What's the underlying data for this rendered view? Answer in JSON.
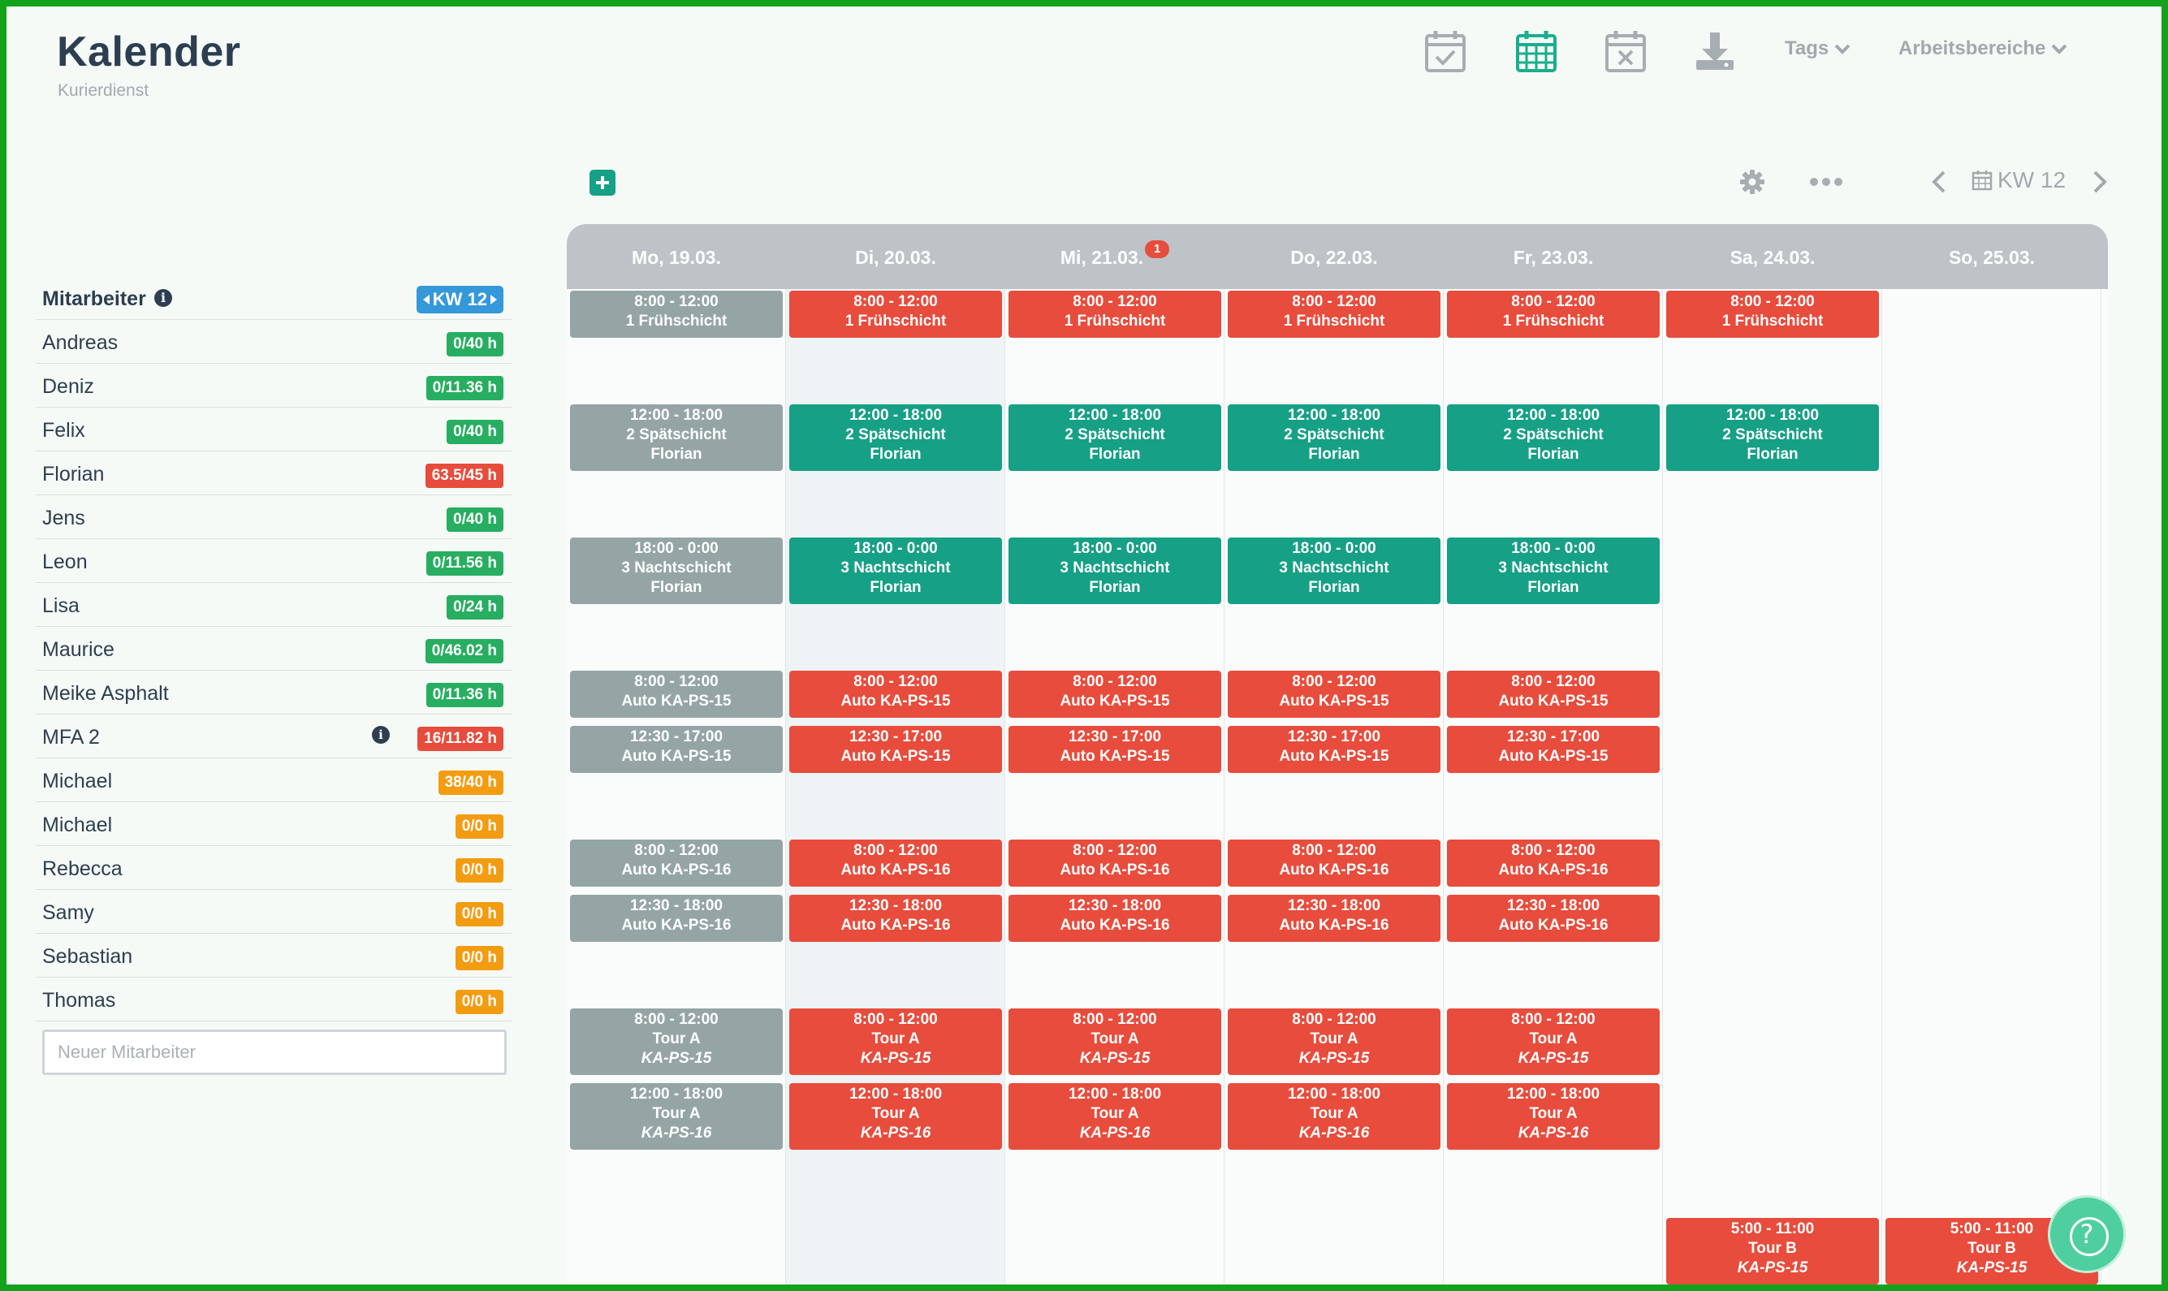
{
  "header": {
    "title": "Kalender",
    "subtitle": "Kurierdienst",
    "icons": [
      "calendar-check-icon",
      "calendar-grid-icon",
      "calendar-x-icon",
      "download-icon"
    ],
    "tags_label": "Tags",
    "areas_label": "Arbeitsbereiche"
  },
  "toolbar": {
    "week_label": "KW 12",
    "icons": [
      "plus-icon",
      "gear-icon",
      "more-icon",
      "chevron-left-icon",
      "calendar-icon",
      "chevron-right-icon"
    ]
  },
  "sidebar": {
    "header_label": "Mitarbeiter",
    "week_badge": "KW 12",
    "new_employee_placeholder": "Neuer Mitarbeiter",
    "employees": [
      {
        "name": "Andreas",
        "hours": "0/40 h",
        "status": "green"
      },
      {
        "name": "Deniz",
        "hours": "0/11.36 h",
        "status": "green"
      },
      {
        "name": "Felix",
        "hours": "0/40 h",
        "status": "green"
      },
      {
        "name": "Florian",
        "hours": "63.5/45 h",
        "status": "red"
      },
      {
        "name": "Jens",
        "hours": "0/40 h",
        "status": "green"
      },
      {
        "name": "Leon",
        "hours": "0/11.56 h",
        "status": "green"
      },
      {
        "name": "Lisa",
        "hours": "0/24 h",
        "status": "green"
      },
      {
        "name": "Maurice",
        "hours": "0/46.02 h",
        "status": "green"
      },
      {
        "name": "Meike Asphalt",
        "hours": "0/11.36 h",
        "status": "green"
      },
      {
        "name": "MFA 2",
        "hours": "16/11.82 h",
        "status": "red",
        "info": true
      },
      {
        "name": "Michael",
        "hours": "38/40 h",
        "status": "orange"
      },
      {
        "name": "Michael",
        "hours": "0/0 h",
        "status": "orange"
      },
      {
        "name": "Rebecca",
        "hours": "0/0 h",
        "status": "orange"
      },
      {
        "name": "Samy",
        "hours": "0/0 h",
        "status": "orange"
      },
      {
        "name": "Sebastian",
        "hours": "0/0 h",
        "status": "orange"
      },
      {
        "name": "Thomas",
        "hours": "0/0 h",
        "status": "orange"
      }
    ]
  },
  "colors": {
    "green": "#27ae60",
    "red": "#e74c3c",
    "orange": "#f39c12",
    "blue": "#3498db",
    "shift_grey": "#95a5a6",
    "shift_red": "#e74c3c",
    "shift_teal": "#16a085"
  },
  "calendar": {
    "days": [
      {
        "label": "Mo, 19.03.",
        "badge": ""
      },
      {
        "label": "Di, 20.03.",
        "badge": ""
      },
      {
        "label": "Mi, 21.03.",
        "badge": "1"
      },
      {
        "label": "Do, 22.03.",
        "badge": ""
      },
      {
        "label": "Fr, 23.03.",
        "badge": ""
      },
      {
        "label": "Sa, 24.03.",
        "badge": ""
      },
      {
        "label": "So, 25.03.",
        "badge": ""
      }
    ],
    "today_index": 1,
    "shift_types": [
      {
        "lines": [
          "8:00 - 12:00",
          "1 Frühschicht"
        ],
        "colors": [
          "grey",
          "red",
          "red",
          "red",
          "red",
          "red",
          null
        ]
      },
      {
        "lines": [
          "12:00 - 18:00",
          "2 Spätschicht",
          "Florian"
        ],
        "colors": [
          "grey",
          "teal",
          "teal",
          "teal",
          "teal",
          "teal",
          null
        ]
      },
      {
        "lines": [
          "18:00 - 0:00",
          "3 Nachtschicht",
          "Florian"
        ],
        "colors": [
          "grey",
          "teal",
          "teal",
          "teal",
          "teal",
          null,
          null
        ]
      },
      {
        "lines": [
          "8:00 - 12:00",
          "Auto KA-PS-15"
        ],
        "colors": [
          "grey",
          "red",
          "red",
          "red",
          "red",
          null,
          null
        ]
      },
      {
        "lines": [
          "12:30 - 17:00",
          "Auto KA-PS-15"
        ],
        "colors": [
          "grey",
          "red",
          "red",
          "red",
          "red",
          null,
          null
        ]
      },
      {
        "lines": [
          "8:00 - 12:00",
          "Auto KA-PS-16"
        ],
        "colors": [
          "grey",
          "red",
          "red",
          "red",
          "red",
          null,
          null
        ]
      },
      {
        "lines": [
          "12:30 - 18:00",
          "Auto KA-PS-16"
        ],
        "colors": [
          "grey",
          "red",
          "red",
          "red",
          "red",
          null,
          null
        ]
      },
      {
        "lines": [
          "8:00 - 12:00",
          "Tour A",
          "KA-PS-15"
        ],
        "italic_last": true,
        "colors": [
          "grey",
          "red",
          "red",
          "red",
          "red",
          null,
          null
        ]
      },
      {
        "lines": [
          "12:00 - 18:00",
          "Tour A",
          "KA-PS-16"
        ],
        "italic_last": true,
        "colors": [
          "grey",
          "red",
          "red",
          "red",
          "red",
          null,
          null
        ]
      },
      {
        "lines": [
          "5:00 - 11:00",
          "Tour B",
          "KA-PS-15"
        ],
        "italic_last": true,
        "colors": [
          null,
          null,
          null,
          null,
          null,
          "red",
          "red"
        ]
      }
    ]
  },
  "help_label": "?"
}
